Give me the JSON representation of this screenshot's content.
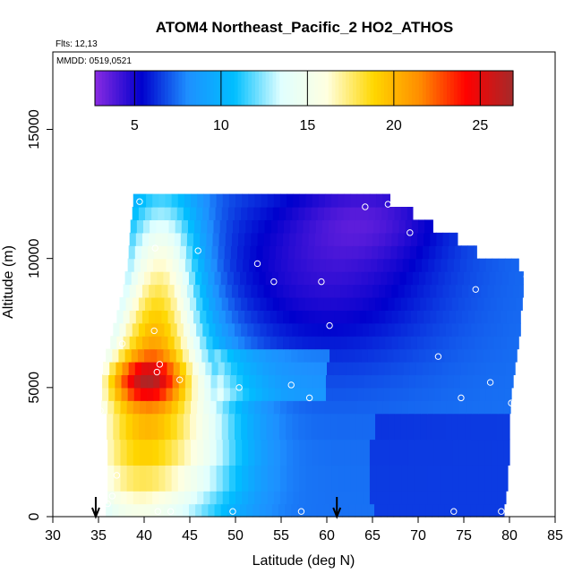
{
  "chart_data": {
    "type": "heatmap",
    "title": "ATOM4 Northeast_Pacific_2 HO2_ATHOS",
    "flights_text": "Flts: 12,13",
    "dates_text": "MMDD: 0519,0521",
    "xlabel": "Latitude (deg N)",
    "ylabel": "Altitude (m)",
    "xlim": [
      30,
      85
    ],
    "ylim": [
      0,
      18000
    ],
    "x_ticks": [
      30,
      35,
      40,
      45,
      50,
      55,
      60,
      65,
      70,
      75,
      80,
      85
    ],
    "y_ticks": [
      0,
      5000,
      10000,
      15000
    ],
    "colorbar": {
      "range": [
        2.7,
        26.9
      ],
      "ticks": [
        5,
        10,
        15,
        20,
        25
      ],
      "colors": [
        "#8a2be2",
        "#0000cd",
        "#1e90ff",
        "#00bfff",
        "#e0ffff",
        "#ffffe0",
        "#ffd700",
        "#ff8c00",
        "#ff0000",
        "#a52a2a"
      ]
    },
    "field": {
      "lat_range": [
        34.5,
        82
      ],
      "alt_range": [
        0,
        12500
      ],
      "row_extents": [
        {
          "alt": [
            0,
            500
          ],
          "lat": [
            35.8,
            79.4
          ]
        },
        {
          "alt": [
            500,
            1000
          ],
          "lat": [
            36.0,
            79.6
          ]
        },
        {
          "alt": [
            1000,
            2000
          ],
          "lat": [
            36.0,
            79.8
          ]
        },
        {
          "alt": [
            2000,
            3000
          ],
          "lat": [
            36.0,
            80.0
          ]
        },
        {
          "alt": [
            3000,
            4000
          ],
          "lat": [
            35.9,
            80.0
          ]
        },
        {
          "alt": [
            4000,
            4500
          ],
          "lat": [
            35.3,
            80.1
          ]
        },
        {
          "alt": [
            4500,
            5000
          ],
          "lat": [
            35.4,
            80.2
          ]
        },
        {
          "alt": [
            5000,
            5500
          ],
          "lat": [
            35.4,
            80.4
          ]
        },
        {
          "alt": [
            5500,
            6000
          ],
          "lat": [
            35.5,
            80.6
          ]
        },
        {
          "alt": [
            6000,
            6500
          ],
          "lat": [
            35.8,
            80.8
          ]
        },
        {
          "alt": [
            6500,
            7000
          ],
          "lat": [
            36.3,
            81.0
          ]
        },
        {
          "alt": [
            7000,
            7500
          ],
          "lat": [
            36.6,
            81.2
          ]
        },
        {
          "alt": [
            7500,
            8000
          ],
          "lat": [
            37.0,
            81.2
          ]
        },
        {
          "alt": [
            8000,
            8500
          ],
          "lat": [
            37.3,
            81.4
          ]
        },
        {
          "alt": [
            8500,
            9000
          ],
          "lat": [
            37.7,
            81.5
          ]
        },
        {
          "alt": [
            9000,
            9500
          ],
          "lat": [
            37.9,
            81.5
          ]
        },
        {
          "alt": [
            9500,
            10000
          ],
          "lat": [
            38.2,
            81.0
          ]
        },
        {
          "alt": [
            10000,
            10500
          ],
          "lat": [
            38.3,
            76.4
          ]
        },
        {
          "alt": [
            10500,
            11000
          ],
          "lat": [
            38.4,
            74.3
          ]
        },
        {
          "alt": [
            11000,
            11500
          ],
          "lat": [
            38.5,
            71.6
          ]
        },
        {
          "alt": [
            11500,
            12000
          ],
          "lat": [
            38.7,
            69.4
          ]
        },
        {
          "alt": [
            12000,
            12500
          ],
          "lat": [
            38.8,
            66.9
          ]
        }
      ]
    },
    "observations": [
      {
        "lat": 35.2,
        "alt": 4100
      },
      {
        "lat": 36.0,
        "alt": 500
      },
      {
        "lat": 36.5,
        "alt": 800
      },
      {
        "lat": 37.0,
        "alt": 1600
      },
      {
        "lat": 37.6,
        "alt": 6700
      },
      {
        "lat": 41.1,
        "alt": 7200
      },
      {
        "lat": 41.4,
        "alt": 5600
      },
      {
        "lat": 41.7,
        "alt": 5900
      },
      {
        "lat": 41.5,
        "alt": 200
      },
      {
        "lat": 42.9,
        "alt": 200
      },
      {
        "lat": 43.9,
        "alt": 5300
      },
      {
        "lat": 39.5,
        "alt": 12200
      },
      {
        "lat": 41.2,
        "alt": 10400
      },
      {
        "lat": 45.9,
        "alt": 10300
      },
      {
        "lat": 49.7,
        "alt": 200
      },
      {
        "lat": 50.4,
        "alt": 5000
      },
      {
        "lat": 52.4,
        "alt": 9800
      },
      {
        "lat": 54.2,
        "alt": 9100
      },
      {
        "lat": 56.1,
        "alt": 5100
      },
      {
        "lat": 57.2,
        "alt": 200
      },
      {
        "lat": 58.1,
        "alt": 4600
      },
      {
        "lat": 59.4,
        "alt": 9100
      },
      {
        "lat": 60.3,
        "alt": 7400
      },
      {
        "lat": 64.2,
        "alt": 12000
      },
      {
        "lat": 66.7,
        "alt": 12100
      },
      {
        "lat": 69.1,
        "alt": 11000
      },
      {
        "lat": 72.2,
        "alt": 6200
      },
      {
        "lat": 73.9,
        "alt": 200
      },
      {
        "lat": 74.7,
        "alt": 4600
      },
      {
        "lat": 76.3,
        "alt": 8800
      },
      {
        "lat": 77.9,
        "alt": 5200
      },
      {
        "lat": 79.1,
        "alt": 200
      },
      {
        "lat": 80.2,
        "alt": 4400
      },
      {
        "lat": 81.9,
        "alt": 9300
      }
    ],
    "arrows": [
      {
        "lat": 34.7
      },
      {
        "lat": 61.1
      }
    ]
  }
}
